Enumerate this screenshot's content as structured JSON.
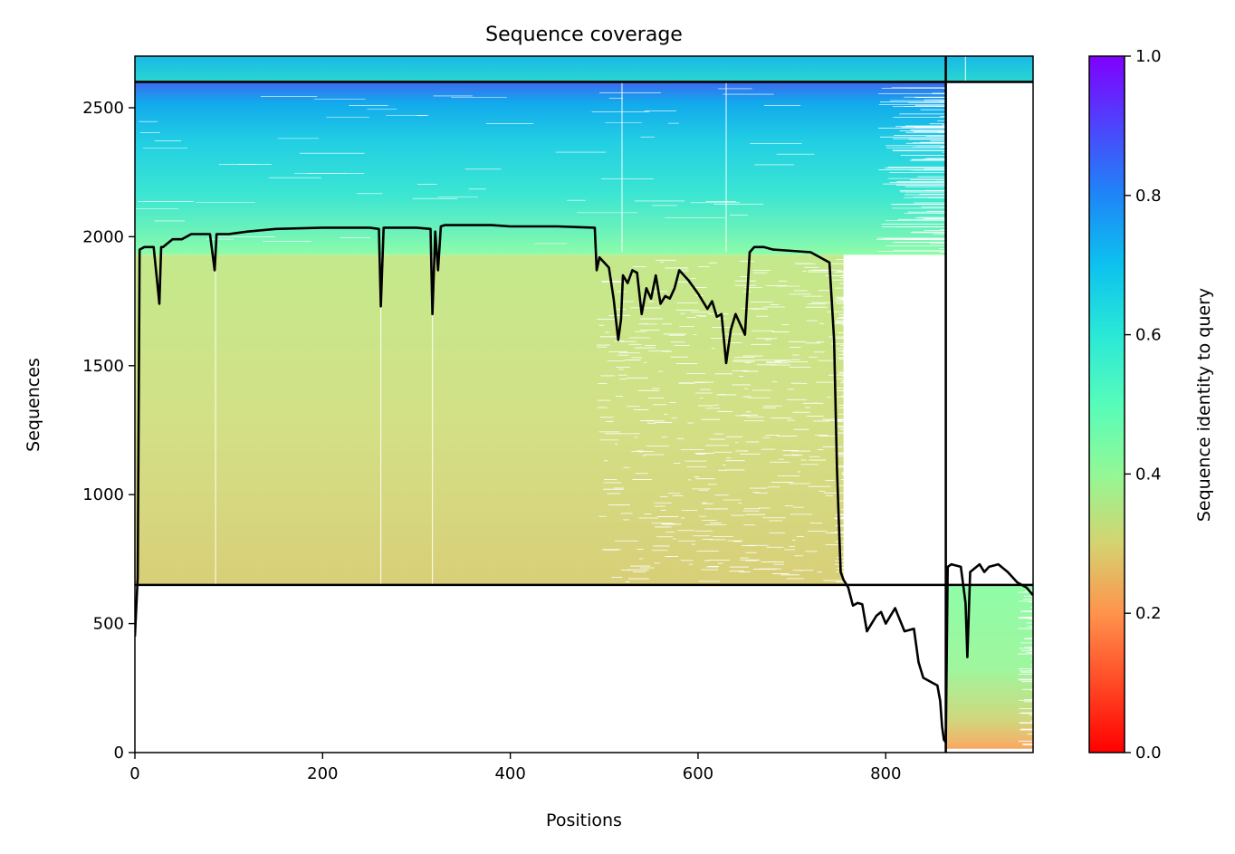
{
  "chart_data": {
    "type": "heatmap",
    "title": "Sequence coverage",
    "xlabel": "Positions",
    "ylabel": "Sequences",
    "xlim": [
      0,
      957
    ],
    "ylim": [
      0,
      2700
    ],
    "x_ticks": [
      0,
      200,
      400,
      600,
      800
    ],
    "y_ticks": [
      0,
      500,
      1000,
      1500,
      2000,
      2500
    ],
    "colorbar": {
      "label": "Sequence identity to query",
      "range": [
        0.0,
        1.0
      ],
      "ticks": [
        "0.0",
        "0.2",
        "0.4",
        "0.6",
        "0.8",
        "1.0"
      ],
      "colormap": "rainbow"
    },
    "blocks": [
      {
        "x": [
          0,
          864
        ],
        "y": [
          2600,
          2700
        ],
        "identity": [
          0.62,
          0.72
        ]
      },
      {
        "x": [
          864,
          957
        ],
        "y": [
          2600,
          2700
        ],
        "identity": [
          0.62,
          0.72
        ]
      },
      {
        "x": [
          0,
          864
        ],
        "y": [
          1930,
          2600
        ],
        "identity": [
          0.5,
          0.85
        ]
      },
      {
        "x": [
          0,
          755
        ],
        "y": [
          650,
          1930
        ],
        "identity": [
          0.33,
          0.38
        ]
      },
      {
        "x": [
          864,
          957
        ],
        "y": [
          0,
          650
        ],
        "identity": [
          0.22,
          0.45
        ]
      }
    ],
    "dividers": {
      "horizontal": [
        2600,
        650
      ],
      "vertical": [
        864
      ]
    },
    "coverage_line": {
      "x": [
        0,
        3,
        5,
        10,
        20,
        25,
        26,
        28,
        30,
        40,
        50,
        55,
        60,
        80,
        85,
        87,
        90,
        100,
        120,
        150,
        200,
        250,
        260,
        262,
        265,
        280,
        300,
        315,
        317,
        320,
        323,
        326,
        330,
        350,
        380,
        400,
        420,
        450,
        490,
        492,
        495,
        500,
        505,
        510,
        515,
        518,
        520,
        525,
        530,
        535,
        540,
        545,
        550,
        555,
        560,
        565,
        570,
        575,
        580,
        590,
        600,
        610,
        615,
        620,
        625,
        630,
        635,
        640,
        650,
        655,
        660,
        670,
        680,
        700,
        720,
        740,
        745,
        748,
        750,
        752,
        755,
        760,
        765,
        770,
        775,
        780,
        790,
        795,
        800,
        810,
        820,
        830,
        835,
        840,
        845,
        850,
        855,
        858,
        860,
        862,
        864,
        866,
        870,
        880,
        885,
        887,
        890,
        900,
        905,
        910,
        920,
        930,
        940,
        950,
        957
      ],
      "y": [
        450,
        680,
        1950,
        1960,
        1960,
        1780,
        1740,
        1960,
        1960,
        1990,
        1990,
        2000,
        2010,
        2010,
        1870,
        2010,
        2010,
        2010,
        2020,
        2030,
        2035,
        2035,
        2030,
        1730,
        2035,
        2035,
        2035,
        2030,
        1700,
        2020,
        1870,
        2040,
        2045,
        2045,
        2045,
        2040,
        2040,
        2040,
        2035,
        1870,
        1920,
        1900,
        1880,
        1760,
        1600,
        1680,
        1850,
        1820,
        1870,
        1860,
        1700,
        1800,
        1760,
        1850,
        1740,
        1770,
        1760,
        1800,
        1870,
        1830,
        1780,
        1720,
        1750,
        1690,
        1700,
        1510,
        1640,
        1700,
        1620,
        1940,
        1960,
        1960,
        1950,
        1945,
        1940,
        1900,
        1600,
        1100,
        900,
        700,
        670,
        640,
        570,
        580,
        575,
        470,
        530,
        545,
        500,
        560,
        470,
        480,
        350,
        290,
        280,
        270,
        260,
        200,
        100,
        50,
        40,
        720,
        730,
        720,
        580,
        370,
        700,
        730,
        700,
        720,
        730,
        700,
        660,
        640,
        610
      ]
    }
  }
}
